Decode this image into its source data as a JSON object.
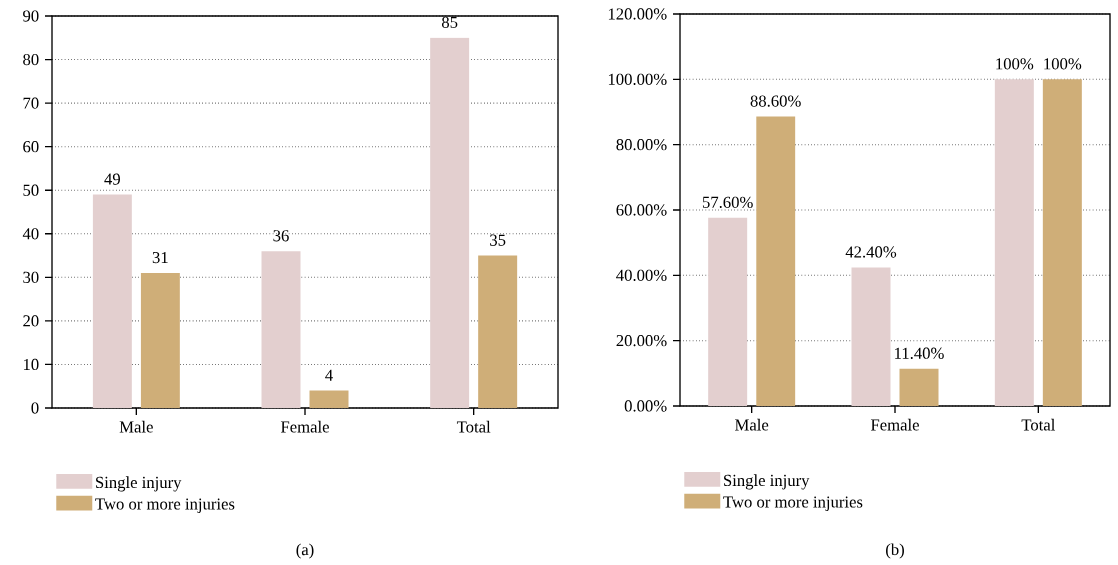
{
  "chart_data": [
    {
      "type": "bar",
      "categories": [
        "Male",
        "Female",
        "Total"
      ],
      "series": [
        {
          "name": "Single injury",
          "color": "#e3cfcf",
          "values": [
            49,
            36,
            85
          ]
        },
        {
          "name": "Two or more injuries",
          "color": "#cfae78",
          "values": [
            31,
            4,
            35
          ]
        }
      ],
      "ylim": [
        0,
        90
      ],
      "yticks": [
        0,
        10,
        20,
        30,
        40,
        50,
        60,
        70,
        80,
        90
      ],
      "grid": "y",
      "legend": "bottom left",
      "data_labels": true,
      "annotations": [
        "(a)"
      ]
    },
    {
      "type": "bar",
      "categories": [
        "Male",
        "Female",
        "Total"
      ],
      "series": [
        {
          "name": "Single injury",
          "color": "#e3cfcf",
          "values": [
            57.6,
            42.4,
            100
          ],
          "value_labels": [
            "57.60%",
            "42.40%",
            "100%"
          ]
        },
        {
          "name": "Two or more injuries",
          "color": "#cfae78",
          "values": [
            88.6,
            11.4,
            100
          ],
          "value_labels": [
            "88.60%",
            "11.40%",
            "100%"
          ]
        }
      ],
      "ylim": [
        0,
        120
      ],
      "yticks": [
        {
          "value": 0,
          "label": "0.00%"
        },
        {
          "value": 20,
          "label": "20.00%"
        },
        {
          "value": 40,
          "label": "40.00%"
        },
        {
          "value": 60,
          "label": "60.00%"
        },
        {
          "value": 80,
          "label": "80.00%"
        },
        {
          "value": 100,
          "label": "100.00%"
        },
        {
          "value": 120,
          "label": "120.00%"
        }
      ],
      "grid": "y",
      "legend": "bottom left",
      "annotations": [
        "(b)"
      ]
    }
  ]
}
